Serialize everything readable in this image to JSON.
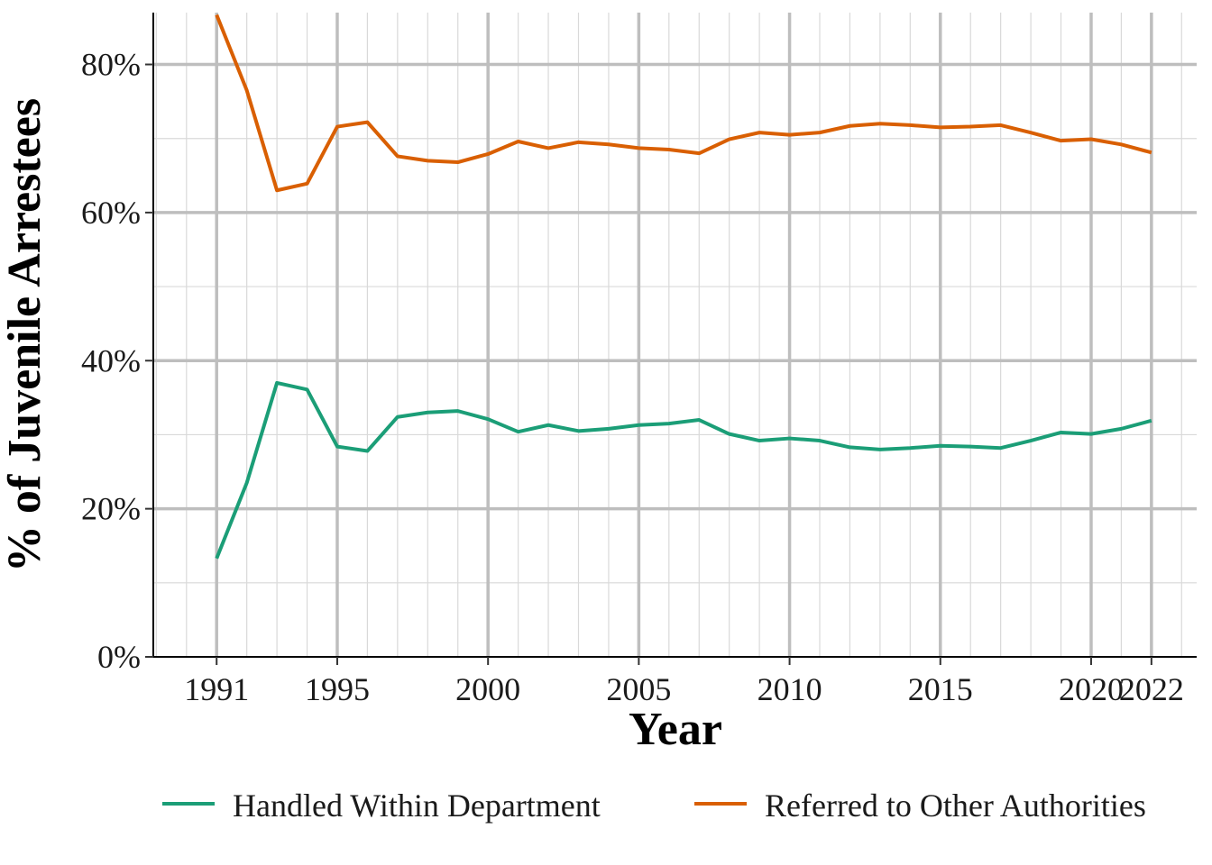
{
  "chart_data": {
    "type": "line",
    "title": "",
    "xlabel": "Year",
    "ylabel": "% of Juvenile Arrestees",
    "xlim": [
      1988.9,
      2023.5
    ],
    "ylim": [
      0,
      87
    ],
    "x_ticks": [
      1991,
      1995,
      2000,
      2005,
      2010,
      2015,
      2020,
      2022
    ],
    "y_ticks": [
      0,
      20,
      40,
      60,
      80
    ],
    "y_tick_labels": [
      "0%",
      "20%",
      "40%",
      "60%",
      "80%"
    ],
    "grid": true,
    "legend_position": "bottom",
    "x": [
      1991,
      1992,
      1993,
      1994,
      1995,
      1996,
      1997,
      1998,
      1999,
      2000,
      2001,
      2002,
      2003,
      2004,
      2005,
      2006,
      2007,
      2008,
      2009,
      2010,
      2011,
      2012,
      2013,
      2014,
      2015,
      2016,
      2017,
      2018,
      2019,
      2020,
      2021,
      2022
    ],
    "series": [
      {
        "name": "Handled Within Department",
        "color": "#1b9e77",
        "values": [
          13.3,
          23.5,
          37.0,
          36.1,
          28.4,
          27.8,
          32.4,
          33.0,
          33.2,
          32.1,
          30.4,
          31.3,
          30.5,
          30.8,
          31.3,
          31.5,
          32.0,
          30.1,
          29.2,
          29.5,
          29.2,
          28.3,
          28.0,
          28.2,
          28.5,
          28.4,
          28.2,
          29.2,
          30.3,
          30.1,
          30.8,
          31.9
        ]
      },
      {
        "name": "Referred to Other Authorities",
        "color": "#d95f02",
        "values": [
          86.7,
          76.5,
          63.0,
          63.9,
          71.6,
          72.2,
          67.6,
          67.0,
          66.8,
          67.9,
          69.6,
          68.7,
          69.5,
          69.2,
          68.7,
          68.5,
          68.0,
          69.9,
          70.8,
          70.5,
          70.8,
          71.7,
          72.0,
          71.8,
          71.5,
          71.6,
          71.8,
          70.8,
          69.7,
          69.9,
          69.2,
          68.1
        ]
      }
    ]
  }
}
